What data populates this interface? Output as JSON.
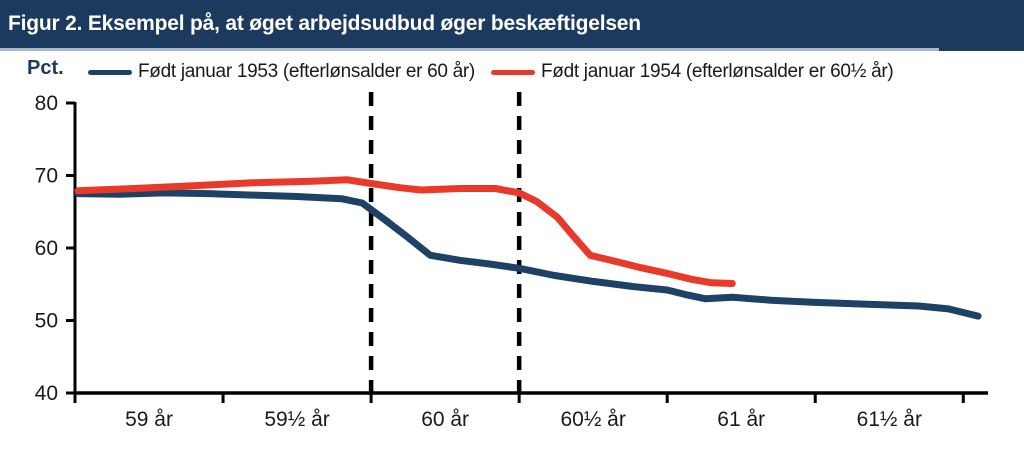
{
  "header": {
    "title": "Figur 2. Eksempel på, at øget arbejdsudbud øger beskæftigelsen"
  },
  "y_axis_unit_label": "Pct.",
  "legend": {
    "items": [
      {
        "label": "Født januar 1953 (efterlønsalder er 60 år)",
        "color": "#1e4266"
      },
      {
        "label": "Født januar 1954 (efterlønsalder er 60½ år)",
        "color": "#e8392b"
      }
    ]
  },
  "colors": {
    "header_background": "#1c3a5e",
    "header_underline": "#aab8c9",
    "axis": "#000000",
    "series_1953": "#1e4266",
    "series_1954": "#e8392b"
  },
  "chart_data": {
    "type": "line",
    "title": "Figur 2. Eksempel på, at øget arbejdsudbud øger beskæftigelsen",
    "xlabel": "",
    "ylabel": "Pct.",
    "ylim": [
      40,
      80
    ],
    "xlim": [
      59.0,
      62.08
    ],
    "grid": false,
    "legend_position": "top",
    "y_ticks": [
      40,
      50,
      60,
      70,
      80
    ],
    "x_interval_boundaries": [
      59.0,
      59.5,
      60.0,
      60.5,
      61.0,
      61.5,
      62.0
    ],
    "x_tick_labels": [
      "59 år",
      "59½ år",
      "60 år",
      "60½ år",
      "61 år",
      "61½ år"
    ],
    "reference_lines": [
      {
        "x": 60.0,
        "style": "dashed",
        "color": "#000000",
        "meaning": "efterlønsalder 1953-årgang (60 år)"
      },
      {
        "x": 60.5,
        "style": "dashed",
        "color": "#000000",
        "meaning": "efterlønsalder 1954-årgang (60½ år)"
      }
    ],
    "series": [
      {
        "name": "Født januar 1953 (efterlønsalder er 60 år)",
        "color": "#1e4266",
        "points": [
          [
            59.01,
            67.5
          ],
          [
            59.15,
            67.4
          ],
          [
            59.3,
            67.6
          ],
          [
            59.45,
            67.5
          ],
          [
            59.6,
            67.3
          ],
          [
            59.75,
            67.1
          ],
          [
            59.9,
            66.8
          ],
          [
            59.97,
            66.2
          ],
          [
            60.0,
            65.3
          ],
          [
            60.05,
            63.8
          ],
          [
            60.12,
            61.6
          ],
          [
            60.2,
            59.0
          ],
          [
            60.3,
            58.3
          ],
          [
            60.4,
            57.8
          ],
          [
            60.5,
            57.2
          ],
          [
            60.62,
            56.2
          ],
          [
            60.75,
            55.4
          ],
          [
            60.88,
            54.7
          ],
          [
            61.0,
            54.2
          ],
          [
            61.07,
            53.5
          ],
          [
            61.13,
            53.0
          ],
          [
            61.22,
            53.2
          ],
          [
            61.35,
            52.8
          ],
          [
            61.5,
            52.5
          ],
          [
            61.7,
            52.2
          ],
          [
            61.85,
            52.0
          ],
          [
            61.95,
            51.6
          ],
          [
            62.05,
            50.6
          ]
        ]
      },
      {
        "name": "Født januar 1954 (efterlønsalder er 60½ år)",
        "color": "#e8392b",
        "points": [
          [
            59.01,
            67.9
          ],
          [
            59.2,
            68.2
          ],
          [
            59.4,
            68.6
          ],
          [
            59.6,
            69.0
          ],
          [
            59.8,
            69.2
          ],
          [
            59.92,
            69.4
          ],
          [
            60.0,
            68.9
          ],
          [
            60.1,
            68.3
          ],
          [
            60.17,
            68.0
          ],
          [
            60.3,
            68.2
          ],
          [
            60.42,
            68.2
          ],
          [
            60.5,
            67.6
          ],
          [
            60.56,
            66.4
          ],
          [
            60.63,
            64.2
          ],
          [
            60.68,
            61.8
          ],
          [
            60.74,
            59.0
          ],
          [
            60.82,
            58.2
          ],
          [
            60.9,
            57.4
          ],
          [
            61.0,
            56.5
          ],
          [
            61.08,
            55.7
          ],
          [
            61.15,
            55.2
          ],
          [
            61.22,
            55.1
          ]
        ]
      }
    ]
  }
}
